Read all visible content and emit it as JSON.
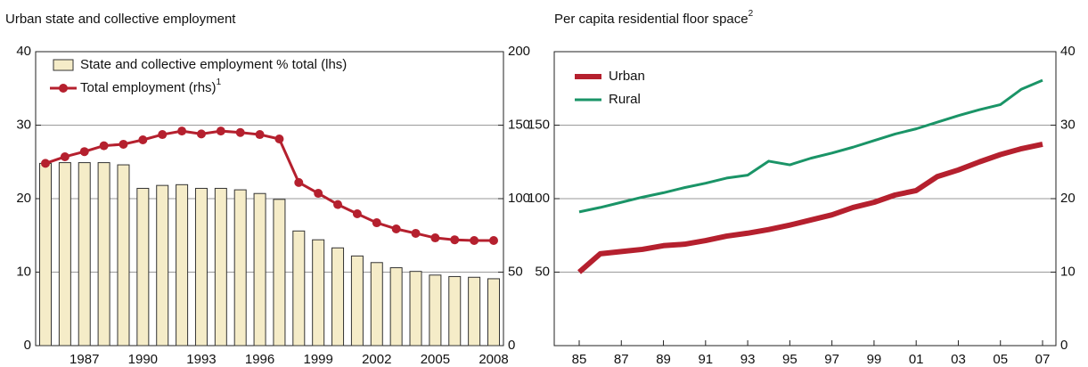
{
  "chart_data": [
    {
      "type": "bar_line",
      "title": "Urban state and collective employment",
      "categories": [
        null,
        null,
        "1987",
        null,
        null,
        "1990",
        null,
        null,
        "1993",
        null,
        null,
        "1996",
        null,
        null,
        "1999",
        null,
        null,
        "2002",
        null,
        null,
        "2005",
        null,
        null,
        "2008"
      ],
      "series": [
        {
          "name": "State and collective employment % total (lhs)",
          "type": "bar",
          "color": "#f5ecc8",
          "values": [
            24.8,
            24.9,
            24.9,
            24.9,
            24.6,
            21.4,
            21.8,
            21.9,
            21.4,
            21.4,
            21.2,
            20.7,
            19.9,
            15.6,
            14.4,
            13.3,
            12.2,
            11.3,
            10.6,
            10.1,
            9.6,
            9.4,
            9.3,
            9.1
          ]
        },
        {
          "name": "Total employment (rhs)",
          "name_note": "1",
          "type": "line",
          "axis": "y2",
          "color": "#b5202e",
          "values": [
            124,
            128.5,
            132,
            136,
            137,
            140,
            143.6,
            146,
            144,
            146,
            145,
            143.6,
            140.6,
            111,
            103.6,
            96,
            89.7,
            83.6,
            79.4,
            76.4,
            73.3,
            72,
            71.5,
            71.5
          ]
        }
      ],
      "ylim": [
        0,
        40
      ],
      "yticks": [
        0,
        10,
        20,
        30,
        40
      ],
      "y2lim": [
        0,
        200
      ],
      "y2ticks": [
        0,
        50,
        100,
        150,
        200
      ],
      "grid": true
    },
    {
      "type": "line",
      "title": "Per capita residential floor space",
      "title_note": "2",
      "categories": [
        "85",
        null,
        "87",
        null,
        "89",
        null,
        "91",
        null,
        "93",
        null,
        "95",
        null,
        "97",
        null,
        "99",
        null,
        "01",
        null,
        "03",
        null,
        "05",
        null,
        "07"
      ],
      "series": [
        {
          "name": "Urban",
          "color": "#b5202e",
          "axis": "y2",
          "values": [
            10.0,
            12.5,
            12.8,
            13.1,
            13.6,
            13.8,
            14.3,
            14.9,
            15.3,
            15.8,
            16.4,
            17.1,
            17.8,
            18.8,
            19.5,
            20.5,
            21.1,
            23.0,
            23.9,
            25.0,
            26.0,
            26.8,
            27.4
          ]
        },
        {
          "name": "Rural",
          "color": "#1a9467",
          "axis": "y2",
          "values": [
            18.2,
            18.8,
            19.5,
            20.2,
            20.8,
            21.5,
            22.1,
            22.8,
            23.2,
            25.1,
            24.6,
            25.5,
            26.2,
            27.0,
            27.9,
            28.8,
            29.5,
            30.4,
            31.3,
            32.1,
            32.8,
            34.9,
            36.1
          ]
        }
      ],
      "ylim": [
        0,
        200
      ],
      "yticks": [
        50,
        100,
        150
      ],
      "y2lim": [
        0,
        40
      ],
      "y2ticks": [
        0,
        10,
        20,
        30,
        40
      ],
      "grid": true
    }
  ]
}
